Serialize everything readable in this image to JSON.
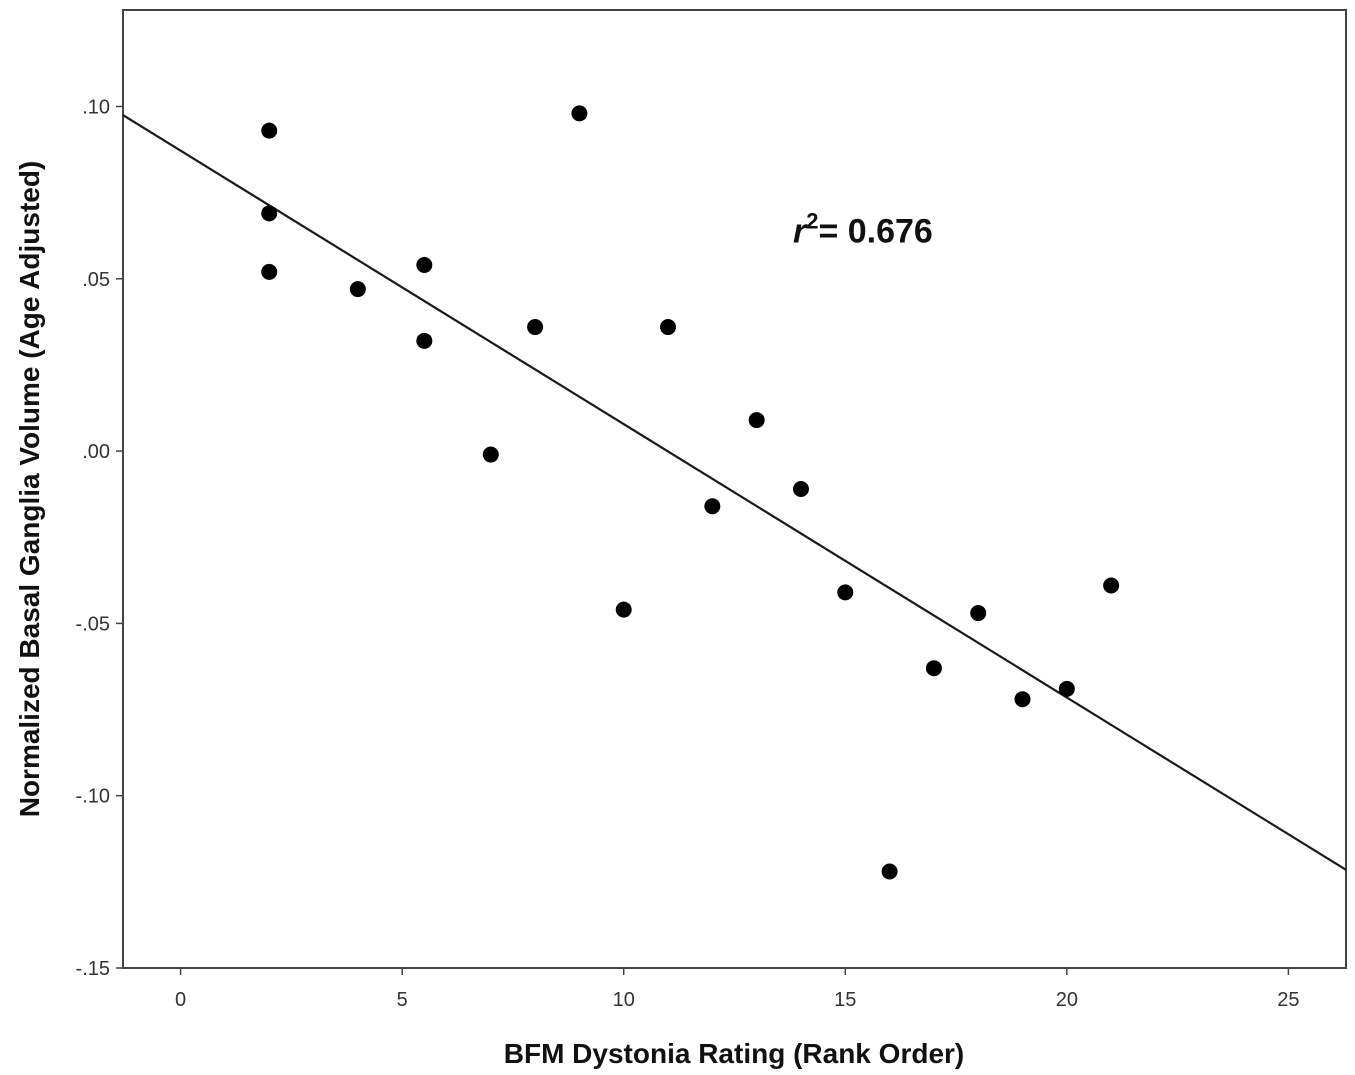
{
  "chart_data": {
    "type": "scatter",
    "title": "",
    "xlabel": "BFM Dystonia Rating (Rank Order)",
    "ylabel": "Normalized Basal Ganglia Volume (Age Adjusted)",
    "xlim": [
      -1.3,
      26.3
    ],
    "ylim": [
      -0.15,
      0.128
    ],
    "x_ticks": [
      0,
      5,
      10,
      15,
      20,
      25
    ],
    "x_tick_labels": [
      "0",
      "5",
      "10",
      "15",
      "20",
      "25"
    ],
    "y_ticks": [
      0.1,
      0.05,
      0.0,
      -0.05,
      -0.1,
      -0.15
    ],
    "y_tick_labels": [
      ".10",
      ".05",
      ".00",
      "-.05",
      "-.10",
      "-.15"
    ],
    "grid": false,
    "legend": "none",
    "points": [
      {
        "x": 2,
        "y": 0.093
      },
      {
        "x": 2,
        "y": 0.069
      },
      {
        "x": 2,
        "y": 0.052
      },
      {
        "x": 4,
        "y": 0.047
      },
      {
        "x": 5.5,
        "y": 0.054
      },
      {
        "x": 5.5,
        "y": 0.032
      },
      {
        "x": 7,
        "y": -0.001
      },
      {
        "x": 8,
        "y": 0.036
      },
      {
        "x": 9,
        "y": 0.098
      },
      {
        "x": 10,
        "y": -0.046
      },
      {
        "x": 11,
        "y": 0.036
      },
      {
        "x": 12,
        "y": -0.016
      },
      {
        "x": 13,
        "y": 0.009
      },
      {
        "x": 14,
        "y": -0.011
      },
      {
        "x": 15,
        "y": -0.041
      },
      {
        "x": 16,
        "y": -0.122
      },
      {
        "x": 17,
        "y": -0.063
      },
      {
        "x": 18,
        "y": -0.047
      },
      {
        "x": 19,
        "y": -0.072
      },
      {
        "x": 20,
        "y": -0.069
      },
      {
        "x": 21,
        "y": -0.039
      }
    ],
    "fit_line": {
      "x": [
        -1.3,
        26.3
      ],
      "y": [
        0.0975,
        -0.1215
      ]
    },
    "annotation": {
      "prefix": "r",
      "superscript": "2",
      "suffix": "=  0.676",
      "x": 14,
      "y": 0.064
    },
    "colors": {
      "points": "#000000",
      "line": "#1a1a1a",
      "frame": "#444444"
    }
  }
}
